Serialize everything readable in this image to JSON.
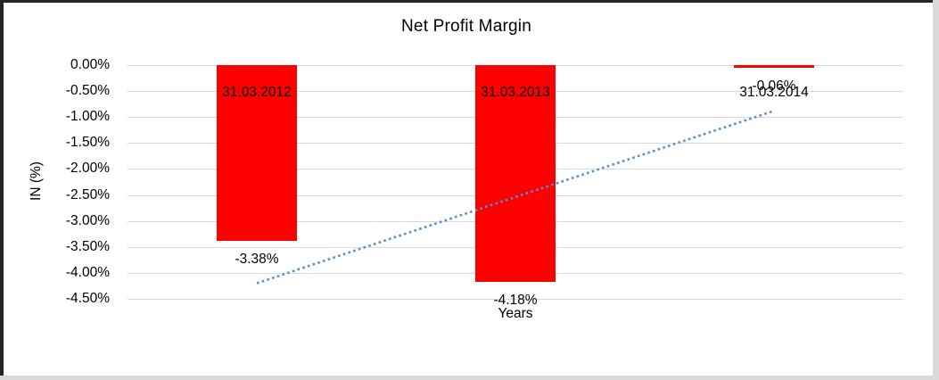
{
  "chart_data": {
    "type": "bar",
    "title": "Net Profit Margin",
    "xlabel": "Years",
    "ylabel": "IN (%)",
    "categories": [
      "31.03.2012",
      "31.03.2013",
      "31.03.2014"
    ],
    "values": [
      -3.38,
      -4.18,
      -0.06
    ],
    "data_labels": [
      "-3.38%",
      "-4.18%",
      "-0.06%"
    ],
    "ylim": [
      -4.5,
      0
    ],
    "ytick_step": 0.5,
    "yticks": [
      "0.00%",
      "-0.50%",
      "-1.00%",
      "-1.50%",
      "-2.00%",
      "-2.50%",
      "-3.00%",
      "-3.50%",
      "-4.00%",
      "-4.50%"
    ],
    "grid": true,
    "legend": "none",
    "bar_color": "#ff0000",
    "gridline_color": "#d9d9d9",
    "text_color": "#000000",
    "trendline": {
      "type": "linear",
      "style": "dotted",
      "color": "#558ed5",
      "fit_values": [
        -4.2,
        -0.88
      ]
    }
  }
}
